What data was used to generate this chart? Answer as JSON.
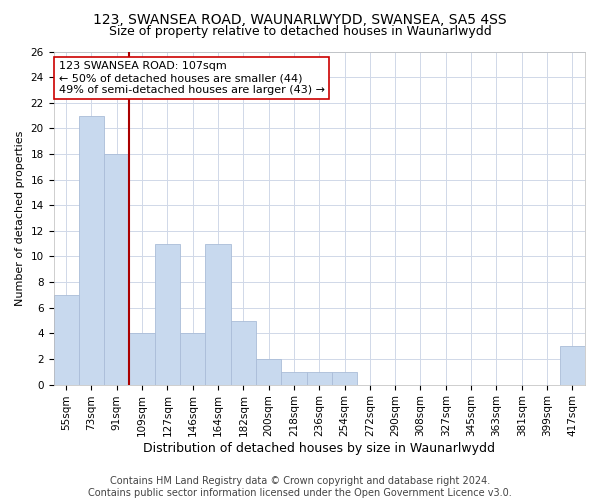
{
  "title1": "123, SWANSEA ROAD, WAUNARLWYDD, SWANSEA, SA5 4SS",
  "title2": "Size of property relative to detached houses in Waunarlwydd",
  "xlabel": "Distribution of detached houses by size in Waunarlwydd",
  "ylabel": "Number of detached properties",
  "categories": [
    "55sqm",
    "73sqm",
    "91sqm",
    "109sqm",
    "127sqm",
    "146sqm",
    "164sqm",
    "182sqm",
    "200sqm",
    "218sqm",
    "236sqm",
    "254sqm",
    "272sqm",
    "290sqm",
    "308sqm",
    "327sqm",
    "345sqm",
    "363sqm",
    "381sqm",
    "399sqm",
    "417sqm"
  ],
  "values": [
    7,
    21,
    18,
    4,
    11,
    4,
    11,
    5,
    2,
    1,
    1,
    1,
    0,
    0,
    0,
    0,
    0,
    0,
    0,
    0,
    3
  ],
  "bar_color": "#c8d9ee",
  "bar_edge_color": "#aabdd8",
  "annotation_line1": "123 SWANSEA ROAD: 107sqm",
  "annotation_line2": "← 50% of detached houses are smaller (44)",
  "annotation_line3": "49% of semi-detached houses are larger (43) →",
  "annotation_box_color": "#ffffff",
  "annotation_border_color": "#cc0000",
  "vline_color": "#aa0000",
  "vline_x": 2.5,
  "ylim": [
    0,
    26
  ],
  "yticks": [
    0,
    2,
    4,
    6,
    8,
    10,
    12,
    14,
    16,
    18,
    20,
    22,
    24,
    26
  ],
  "footer1": "Contains HM Land Registry data © Crown copyright and database right 2024.",
  "footer2": "Contains public sector information licensed under the Open Government Licence v3.0.",
  "bg_color": "#ffffff",
  "grid_color": "#d0d8e8",
  "title1_fontsize": 10,
  "title2_fontsize": 9,
  "xlabel_fontsize": 9,
  "ylabel_fontsize": 8,
  "tick_fontsize": 7.5,
  "footer_fontsize": 7,
  "annot_fontsize": 8
}
